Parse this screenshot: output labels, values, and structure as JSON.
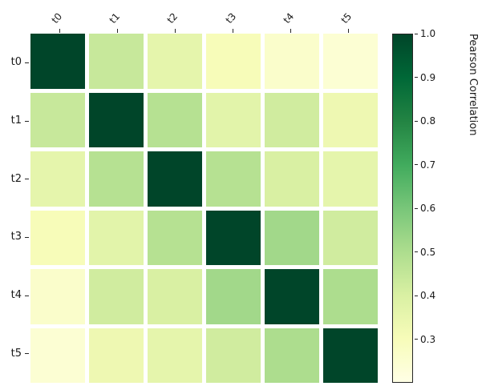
{
  "chart_data": {
    "type": "heatmap",
    "title": "",
    "x_categories": [
      "t0",
      "t1",
      "t2",
      "t3",
      "t4",
      "t5"
    ],
    "y_categories": [
      "t0",
      "t1",
      "t2",
      "t3",
      "t4",
      "t5"
    ],
    "matrix": [
      [
        1.0,
        0.44,
        0.36,
        0.3,
        0.26,
        0.24
      ],
      [
        0.44,
        1.0,
        0.48,
        0.37,
        0.42,
        0.33
      ],
      [
        0.36,
        0.48,
        1.0,
        0.48,
        0.4,
        0.36
      ],
      [
        0.3,
        0.37,
        0.48,
        1.0,
        0.52,
        0.42
      ],
      [
        0.26,
        0.42,
        0.4,
        0.52,
        1.0,
        0.5
      ],
      [
        0.24,
        0.33,
        0.36,
        0.42,
        0.5,
        1.0
      ]
    ],
    "colorbar": {
      "label": "Pearson Correlation",
      "tick_labels": [
        "1.0",
        "0.9",
        "0.8",
        "0.7",
        "0.6",
        "0.5",
        "0.4",
        "0.3"
      ],
      "vmin": 0.2,
      "vmax": 1.0
    },
    "colormap": {
      "name": "YlGn",
      "stops": [
        {
          "pos": 0.0,
          "color": "#ffffe5"
        },
        {
          "pos": 0.125,
          "color": "#f7fcb9"
        },
        {
          "pos": 0.25,
          "color": "#d9f0a3"
        },
        {
          "pos": 0.375,
          "color": "#addd8e"
        },
        {
          "pos": 0.5,
          "color": "#78c679"
        },
        {
          "pos": 0.625,
          "color": "#41ab5d"
        },
        {
          "pos": 0.75,
          "color": "#238443"
        },
        {
          "pos": 0.875,
          "color": "#006837"
        },
        {
          "pos": 1.0,
          "color": "#004529"
        }
      ]
    },
    "grid_gap_color": "#ffffff"
  }
}
